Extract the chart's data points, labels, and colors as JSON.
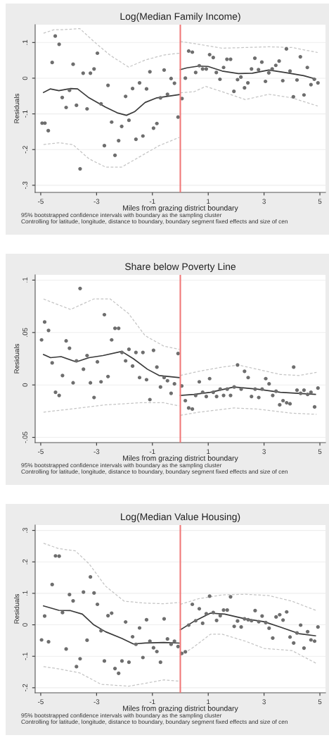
{
  "chart_data": [
    {
      "type": "scatter",
      "title": "Log(Median Family Income)",
      "xlabel": "Miles from grazing district boundary",
      "ylabel": "Residuals",
      "xlim": [
        -5.2,
        5.2
      ],
      "xticks": [
        -5,
        -3,
        -1,
        1,
        3,
        5
      ],
      "ylim": [
        -0.32,
        0.15
      ],
      "yticks": [
        {
          "value": -0.3,
          "label": "-.3"
        },
        {
          "value": -0.2,
          "label": "-.2"
        },
        {
          "value": -0.1,
          "label": "-.1"
        },
        0,
        {
          "value": 0.1,
          "label": ".1"
        }
      ],
      "grid": "y",
      "ref_lines": [
        {
          "axis": "x",
          "value": 0,
          "color": "#f07878"
        }
      ],
      "annotations": [
        "95% bootstrapped confidence intervals with boundary as the sampling cluster",
        "Controlling for latitude, longitude, distance to boundary, boundary segment fixed effects and size of cen"
      ],
      "series": [
        {
          "marker": "circle",
          "color": "#6e6e6e",
          "x": [
            -4.95,
            -4.85,
            -4.73,
            -4.59,
            -4.48,
            -4.34,
            -4.23,
            -4.09,
            -3.97,
            -3.84,
            -3.72,
            -3.59,
            -3.48,
            -3.34,
            -3.22,
            -3.09,
            -2.97,
            -2.84,
            -2.72,
            -2.59,
            -2.46,
            -2.34,
            -2.21,
            -2.1,
            -1.96,
            -1.84,
            -1.71,
            -1.59,
            -1.46,
            -1.34,
            -1.21,
            -1.09,
            -0.96,
            -0.84,
            -0.71,
            -0.58,
            -0.46,
            -0.33,
            -0.21,
            -0.08,
            0.06,
            0.18,
            0.3,
            0.43,
            0.55,
            0.68,
            0.8,
            0.93,
            1.05,
            1.18,
            1.29,
            1.42,
            1.55,
            1.67,
            1.8,
            1.92,
            2.05,
            2.17,
            2.3,
            2.42,
            2.55,
            2.67,
            2.8,
            2.92,
            3.05,
            3.17,
            3.29,
            3.42,
            3.54,
            3.67,
            3.8,
            3.93,
            4.05,
            4.18,
            4.3,
            4.43,
            4.55,
            4.68,
            4.8,
            4.93
          ],
          "values": [
            -0.126,
            -0.126,
            -0.147,
            0.044,
            0.118,
            0.095,
            -0.054,
            -0.082,
            -0.034,
            0.039,
            -0.076,
            -0.254,
            0.014,
            -0.086,
            0.014,
            0.026,
            0.07,
            -0.072,
            -0.189,
            -0.02,
            -0.123,
            -0.216,
            -0.175,
            -0.135,
            -0.051,
            -0.118,
            -0.029,
            -0.171,
            -0.013,
            -0.162,
            -0.03,
            0.018,
            -0.14,
            -0.127,
            -0.055,
            0.023,
            -0.045,
            -0.001,
            -0.014,
            -0.109,
            -0.057,
            0,
            0.076,
            0.073,
            0.016,
            0.035,
            0.026,
            0.026,
            0.066,
            0.058,
            0.016,
            -0.003,
            0.03,
            0.053,
            0.053,
            -0.037,
            -0.004,
            0.003,
            -0.027,
            -0.013,
            0.026,
            0.056,
            0.024,
            0.045,
            -0.009,
            0.015,
            0.026,
            0.036,
            0.048,
            -0.007,
            0.082,
            0.02,
            -0.052,
            -0.005,
            0.06,
            -0.047,
            0.03,
            -0.018,
            -0.003,
            -0.013
          ]
        },
        {
          "type": "line",
          "color": "#3a3a3a",
          "line_style": "solid",
          "x": [
            -4.9,
            -4.66,
            -4.35,
            -3.93,
            -3.68,
            -3.27,
            -2.68,
            -2.26,
            -1.93,
            -1.64,
            -1.26,
            -0.84,
            -0.04
          ],
          "values": [
            -0.04,
            -0.03,
            -0.035,
            -0.029,
            -0.03,
            -0.055,
            -0.081,
            -0.097,
            -0.104,
            -0.094,
            -0.068,
            -0.055,
            -0.046
          ]
        },
        {
          "type": "line",
          "color": "#3a3a3a",
          "line_style": "solid",
          "x": [
            0,
            0.24,
            0.66,
            0.99,
            1.5,
            2.08,
            2.58,
            3.17,
            3.75,
            4.42,
            4.84
          ],
          "values": [
            0.024,
            0.029,
            0.034,
            0.033,
            0.02,
            0.013,
            0.014,
            0.023,
            0.016,
            0.007,
            -0.002
          ]
        },
        {
          "type": "line",
          "color": "#c4c4c4",
          "line_style": "dashed",
          "x": [
            -4.9,
            -4.52,
            -4.19,
            -3.6,
            -3.1,
            -2.51,
            -1.85,
            -1.26,
            -0.59,
            -0.04
          ],
          "values": [
            0.126,
            0.136,
            0.136,
            0.139,
            0.103,
            0.064,
            0.031,
            0.051,
            0.065,
            0.07
          ]
        },
        {
          "type": "line",
          "color": "#c4c4c4",
          "line_style": "dashed",
          "x": [
            0,
            0.66,
            1.5,
            2.33,
            3.17,
            4.0,
            4.92
          ],
          "values": [
            0.103,
            0.095,
            0.084,
            0.086,
            0.088,
            0.086,
            0.072
          ]
        },
        {
          "type": "line",
          "color": "#c4c4c4",
          "line_style": "dashed",
          "x": [
            -4.9,
            -4.35,
            -3.85,
            -3.27,
            -2.68,
            -2.1,
            -1.43,
            -0.76,
            -0.04
          ],
          "values": [
            -0.186,
            -0.181,
            -0.186,
            -0.226,
            -0.249,
            -0.249,
            -0.219,
            -0.189,
            -0.166
          ]
        },
        {
          "type": "line",
          "color": "#c4c4c4",
          "line_style": "dashed",
          "x": [
            0,
            0.49,
            0.91,
            1.5,
            2.33,
            3.17,
            4.0,
            4.92
          ],
          "values": [
            -0.041,
            -0.038,
            -0.023,
            -0.038,
            -0.06,
            -0.045,
            -0.055,
            -0.078
          ]
        }
      ]
    },
    {
      "type": "scatter",
      "title": "Share below Poverty Line",
      "xlabel": "Miles from grazing district boundary",
      "ylabel": "Residuals",
      "xlim": [
        -5.2,
        5.2
      ],
      "xticks": [
        -5,
        -3,
        -1,
        1,
        3,
        5
      ],
      "ylim": [
        -0.055,
        0.105
      ],
      "yticks": [
        {
          "value": -0.05,
          "label": "-.05"
        },
        0,
        {
          "value": 0.05,
          "label": ".05"
        },
        {
          "value": 0.1,
          "label": ".1"
        }
      ],
      "grid": "y",
      "ref_lines": [
        {
          "axis": "x",
          "value": 0,
          "color": "#f07878"
        }
      ],
      "annotations": [
        "95% bootstrapped confidence intervals with boundary as the sampling cluster",
        "Controlling for latitude, longitude, distance to boundary, boundary segment fixed effects and size of cen"
      ],
      "series": [
        {
          "marker": "circle",
          "color": "#6e6e6e",
          "x": [
            -4.97,
            -4.86,
            -4.72,
            -4.59,
            -4.47,
            -4.34,
            -4.22,
            -4.09,
            -3.97,
            -3.84,
            -3.72,
            -3.59,
            -3.47,
            -3.34,
            -3.22,
            -3.09,
            -2.97,
            -2.84,
            -2.72,
            -2.59,
            -2.46,
            -2.34,
            -2.21,
            -2.09,
            -1.96,
            -1.84,
            -1.71,
            -1.59,
            -1.46,
            -1.34,
            -1.21,
            -1.09,
            -0.96,
            -0.84,
            -0.71,
            -0.58,
            -0.46,
            -0.33,
            -0.21,
            -0.08,
            0.05,
            0.18,
            0.3,
            0.43,
            0.55,
            0.68,
            0.8,
            0.93,
            1.05,
            1.18,
            1.3,
            1.43,
            1.55,
            1.68,
            1.8,
            1.93,
            2.05,
            2.18,
            2.3,
            2.43,
            2.55,
            2.68,
            2.81,
            2.93,
            3.06,
            3.18,
            3.31,
            3.43,
            3.56,
            3.68,
            3.81,
            3.93,
            4.06,
            4.18,
            4.31,
            4.43,
            4.56,
            4.68,
            4.81,
            4.93
          ],
          "values": [
            0.043,
            0.06,
            0.052,
            0.021,
            -0.007,
            -0.01,
            0.009,
            0.042,
            0.035,
            0.002,
            0.023,
            0.092,
            0.015,
            0.028,
            0.002,
            -0.012,
            0.022,
            0.003,
            0.067,
            0.008,
            0.043,
            0.054,
            0.054,
            0.031,
            0.023,
            0.034,
            0.018,
            0.031,
            0.007,
            0.031,
            0.005,
            -0.014,
            0.033,
            0.017,
            -0.002,
            0.007,
            0.004,
            -0.008,
            0.001,
            0.03,
            -0.001,
            -0.015,
            -0.022,
            -0.023,
            -0.01,
            0.003,
            -0.007,
            -0.011,
            0.006,
            -0.007,
            -0.011,
            -0.004,
            -0.01,
            -0.004,
            -0.01,
            -0.002,
            0.019,
            -0.004,
            0.013,
            0.007,
            -0.011,
            -0.004,
            -0.012,
            -0.004,
            0.006,
            0.001,
            -0.01,
            -0.006,
            -0.019,
            -0.015,
            -0.017,
            -0.018,
            0.017,
            -0.005,
            -0.008,
            -0.005,
            -0.009,
            -0.007,
            -0.021,
            -0.003
          ]
        },
        {
          "type": "line",
          "color": "#3a3a3a",
          "line_style": "solid",
          "x": [
            -4.9,
            -4.65,
            -4.27,
            -3.73,
            -3.27,
            -2.77,
            -2.1,
            -1.68,
            -1.18,
            -0.76,
            -0.04
          ],
          "values": [
            0.029,
            0.026,
            0.027,
            0.022,
            0.026,
            0.028,
            0.032,
            0.025,
            0.015,
            0.009,
            0.007
          ]
        },
        {
          "type": "line",
          "color": "#3a3a3a",
          "line_style": "solid",
          "x": [
            0,
            0.49,
            1.08,
            1.92,
            2.75,
            3.58,
            4.84
          ],
          "values": [
            -0.01,
            -0.009,
            -0.007,
            -0.002,
            -0.004,
            -0.007,
            -0.009
          ]
        },
        {
          "type": "line",
          "color": "#c4c4c4",
          "line_style": "dashed",
          "x": [
            -4.9,
            -4.52,
            -3.93,
            -3.6,
            -3.1,
            -2.51,
            -1.85,
            -1.26,
            -0.59,
            -0.04
          ],
          "values": [
            0.082,
            0.078,
            0.072,
            0.076,
            0.082,
            0.082,
            0.068,
            0.047,
            0.037,
            0.034
          ]
        },
        {
          "type": "line",
          "color": "#c4c4c4",
          "line_style": "dashed",
          "x": [
            0,
            0.66,
            1.5,
            2.08,
            2.75,
            3.58,
            4.25,
            4.88
          ],
          "values": [
            0.009,
            0.013,
            0.017,
            0.019,
            0.015,
            0.01,
            0.009,
            0.012
          ]
        },
        {
          "type": "line",
          "color": "#c4c4c4",
          "line_style": "dashed",
          "x": [
            -4.9,
            -3.93,
            -2.68,
            -1.43,
            -0.59,
            -0.04
          ],
          "values": [
            -0.026,
            -0.023,
            -0.019,
            -0.017,
            -0.017,
            -0.02
          ]
        },
        {
          "type": "line",
          "color": "#c4c4c4",
          "line_style": "dashed",
          "x": [
            0,
            0.66,
            1.92,
            2.75,
            4.0,
            4.88
          ],
          "values": [
            -0.029,
            -0.026,
            -0.022,
            -0.023,
            -0.027,
            -0.028
          ]
        }
      ]
    },
    {
      "type": "scatter",
      "title": "Log(Median Value Housing)",
      "xlabel": "Miles from grazing district boundary",
      "ylabel": "Residuals",
      "xlim": [
        -5.2,
        5.2
      ],
      "xticks": [
        -5,
        -3,
        -1,
        1,
        3,
        5
      ],
      "ylim": [
        -0.216,
        0.317
      ],
      "yticks": [
        {
          "value": -0.2,
          "label": "-.2"
        },
        {
          "value": -0.1,
          "label": "-.1"
        },
        0,
        {
          "value": 0.1,
          "label": ".1"
        },
        {
          "value": 0.2,
          "label": ".2"
        },
        {
          "value": 0.3,
          "label": ".3"
        }
      ],
      "grid": "y",
      "ref_lines": [
        {
          "axis": "x",
          "value": 0,
          "color": "#f07878"
        }
      ],
      "annotations": [
        "95% bootstrapped confidence intervals with boundary as the sampling cluster",
        "Controlling for latitude, longitude, distance to boundary, boundary segment fixed effects and size of cen"
      ],
      "series": [
        {
          "marker": "circle",
          "color": "#6e6e6e",
          "x": [
            -4.97,
            -4.86,
            -4.72,
            -4.59,
            -4.47,
            -4.34,
            -4.22,
            -4.09,
            -3.97,
            -3.84,
            -3.72,
            -3.59,
            -3.47,
            -3.34,
            -3.22,
            -3.09,
            -2.97,
            -2.84,
            -2.72,
            -2.59,
            -2.46,
            -2.34,
            -2.21,
            -2.09,
            -1.96,
            -1.84,
            -1.71,
            -1.59,
            -1.46,
            -1.34,
            -1.21,
            -1.09,
            -0.96,
            -0.84,
            -0.71,
            -0.58,
            -0.46,
            -0.33,
            -0.21,
            -0.08,
            0.05,
            0.18,
            0.3,
            0.43,
            0.55,
            0.68,
            0.8,
            0.93,
            1.05,
            1.18,
            1.3,
            1.43,
            1.55,
            1.68,
            1.8,
            1.93,
            2.05,
            2.18,
            2.3,
            2.43,
            2.55,
            2.68,
            2.81,
            2.93,
            3.06,
            3.18,
            3.31,
            3.43,
            3.56,
            3.68,
            3.81,
            3.93,
            4.06,
            4.18,
            4.31,
            4.43,
            4.56,
            4.68,
            4.81,
            4.93
          ],
          "values": [
            -0.048,
            0.028,
            -0.054,
            0.128,
            0.219,
            0.218,
            0.039,
            -0.077,
            0.096,
            0.076,
            -0.133,
            -0.108,
            0.104,
            -0.049,
            0.152,
            0.101,
            0.065,
            -0.019,
            -0.115,
            0.029,
            0.037,
            -0.139,
            -0.154,
            -0.115,
            0.009,
            -0.119,
            -0.038,
            -0.062,
            -0.01,
            -0.104,
            0.016,
            -0.052,
            -0.073,
            -0.085,
            -0.119,
            0.019,
            -0.045,
            -0.062,
            -0.052,
            -0.069,
            -0.091,
            -0.086,
            -0.001,
            0.065,
            0.013,
            0.051,
            0.005,
            0.035,
            0.091,
            0.039,
            0.014,
            0.029,
            0.047,
            0.047,
            0.089,
            -0.005,
            0.012,
            -0.007,
            0.019,
            0.016,
            0.013,
            0.045,
            0.01,
            0.028,
            0.007,
            -0.011,
            -0.042,
            0.025,
            0.032,
            0.015,
            0.041,
            -0.039,
            -0.058,
            -0.026,
            -0.001,
            -0.074,
            -0.022,
            -0.048,
            -0.052,
            -0.007
          ]
        },
        {
          "type": "line",
          "color": "#3a3a3a",
          "line_style": "solid",
          "x": [
            -4.9,
            -4.35,
            -3.93,
            -3.51,
            -3.1,
            -2.68,
            -2.1,
            -1.68,
            -1.26,
            -0.59,
            -0.04
          ],
          "values": [
            0.06,
            0.046,
            0.045,
            0.034,
            0,
            -0.022,
            -0.043,
            -0.061,
            -0.058,
            -0.056,
            -0.058
          ]
        },
        {
          "type": "line",
          "color": "#3a3a3a",
          "line_style": "solid",
          "x": [
            0,
            0.49,
            1.08,
            1.59,
            2.33,
            3.0,
            3.58,
            4.25,
            4.84
          ],
          "values": [
            -0.016,
            0.011,
            0.037,
            0.034,
            0.019,
            0.01,
            -0.007,
            -0.028,
            -0.035
          ]
        },
        {
          "type": "line",
          "color": "#c4c4c4",
          "line_style": "dashed",
          "x": [
            -4.9,
            -4.35,
            -3.76,
            -3.27,
            -2.68,
            -2.01,
            -1.26,
            -0.59,
            -0.04
          ],
          "values": [
            0.259,
            0.242,
            0.235,
            0.194,
            0.123,
            0.075,
            0.069,
            0.067,
            0.071
          ]
        },
        {
          "type": "line",
          "color": "#c4c4c4",
          "line_style": "dashed",
          "x": [
            0,
            0.66,
            1.5,
            2.33,
            3.17,
            4.0,
            4.88
          ],
          "values": [
            0.065,
            0.083,
            0.095,
            0.097,
            0.093,
            0.075,
            0.045
          ]
        },
        {
          "type": "line",
          "color": "#c4c4c4",
          "line_style": "dashed",
          "x": [
            -4.9,
            -4.35,
            -3.6,
            -2.84,
            -1.84,
            -1.26,
            -0.59,
            -0.04
          ],
          "values": [
            -0.133,
            -0.14,
            -0.153,
            -0.189,
            -0.195,
            -0.186,
            -0.175,
            -0.179
          ]
        },
        {
          "type": "line",
          "color": "#c4c4c4",
          "line_style": "dashed",
          "x": [
            0,
            0.41,
            1.08,
            1.5,
            2.33,
            3.0,
            4.0,
            4.88
          ],
          "values": [
            -0.097,
            -0.075,
            -0.03,
            -0.03,
            -0.052,
            -0.075,
            -0.082,
            -0.123
          ]
        }
      ]
    }
  ]
}
